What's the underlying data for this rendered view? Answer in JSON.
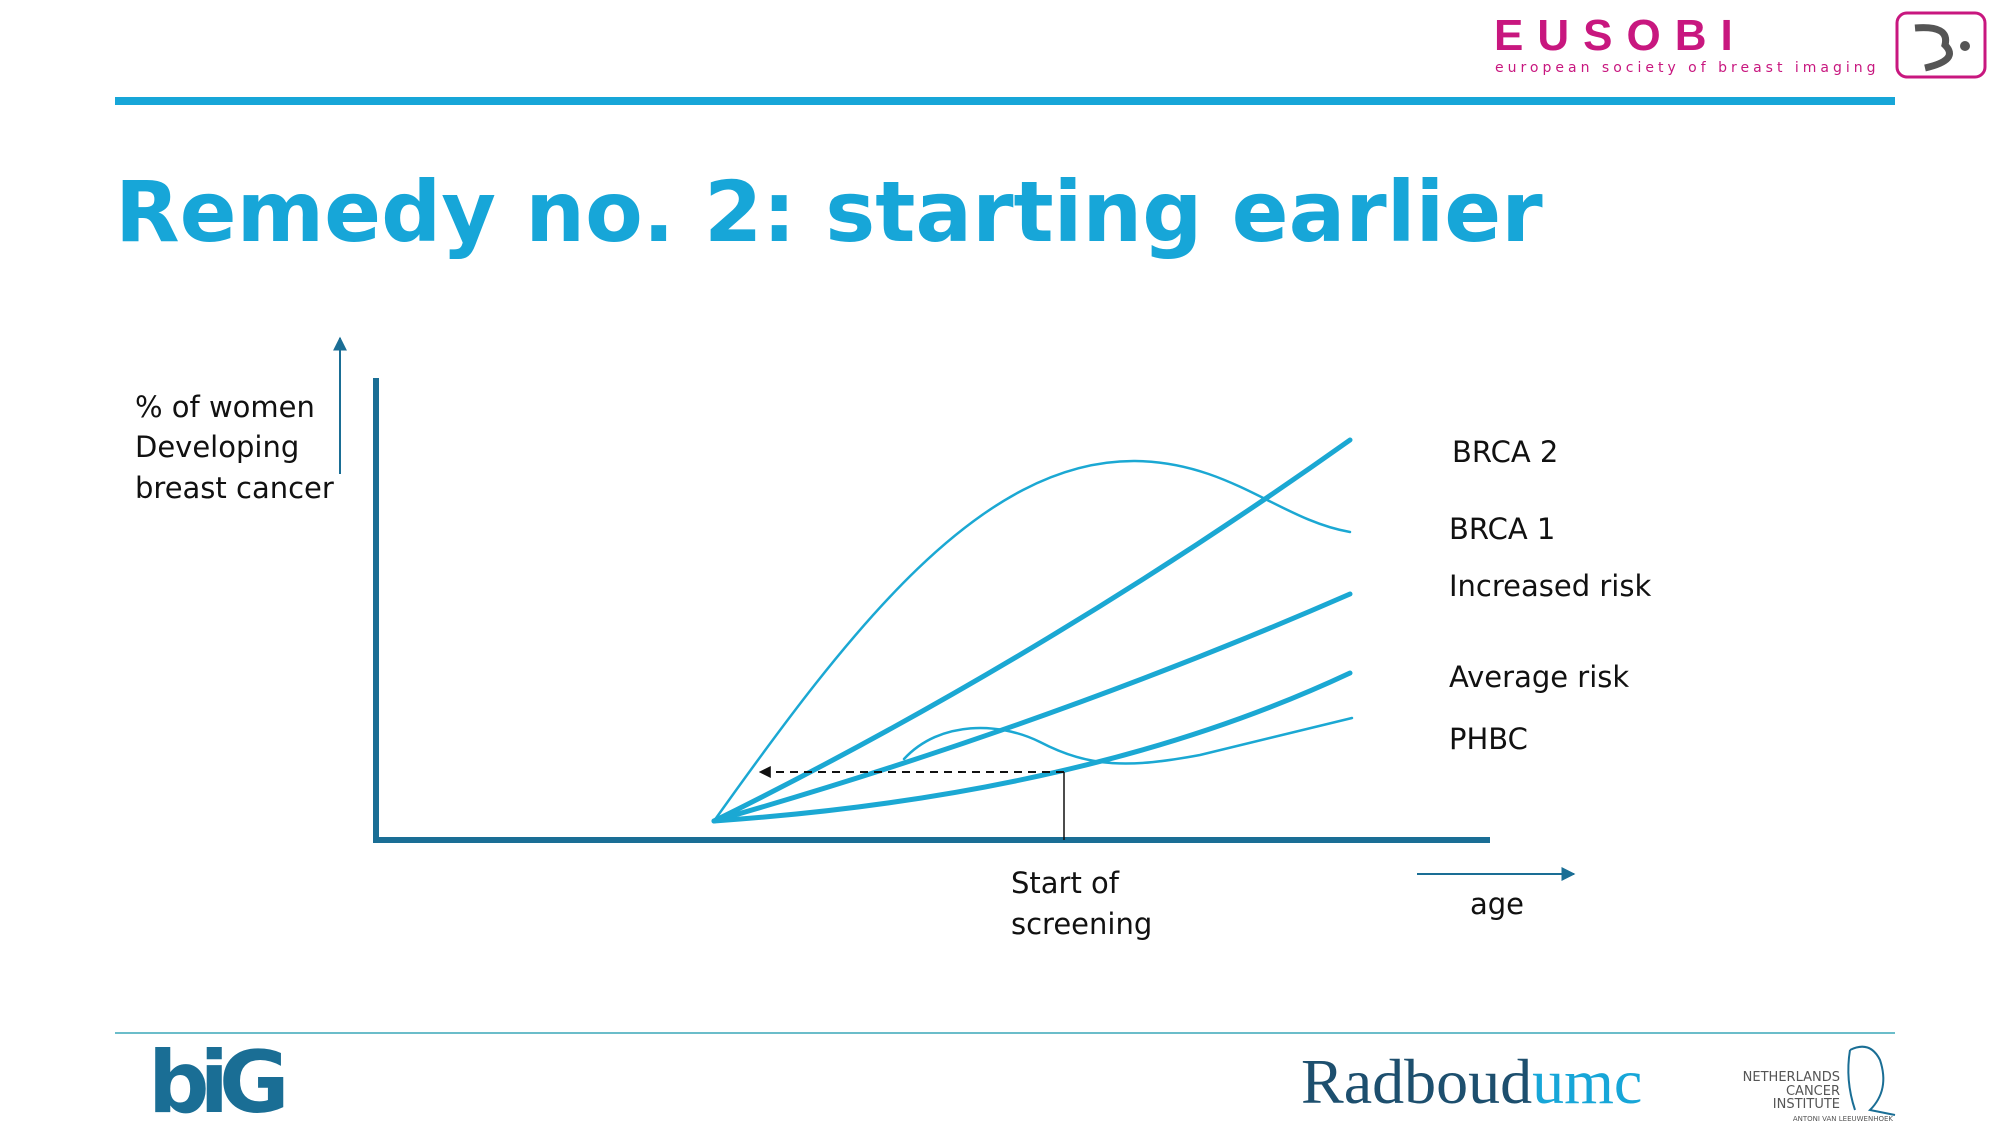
{
  "header": {
    "logo_text": "EUSOBI",
    "logo_subtitle": "european society of breast imaging"
  },
  "title": "Remedy no. 2: starting earlier",
  "diagram": {
    "y_label": [
      "% of women",
      "Developing",
      "breast cancer"
    ],
    "curve_labels": [
      "BRCA 2",
      "BRCA 1",
      "Increased risk",
      "Average risk",
      "PHBC"
    ],
    "screening_label": [
      "Start of",
      "screening"
    ],
    "x_label": "age"
  },
  "footer": {
    "big_logo": "biG",
    "radboud": [
      "Radboud",
      "umc"
    ],
    "nki": [
      "NETHERLANDS",
      "CANCER",
      "INSTITUTE",
      "ANTONI VAN LEEUWENHOEK"
    ]
  }
}
